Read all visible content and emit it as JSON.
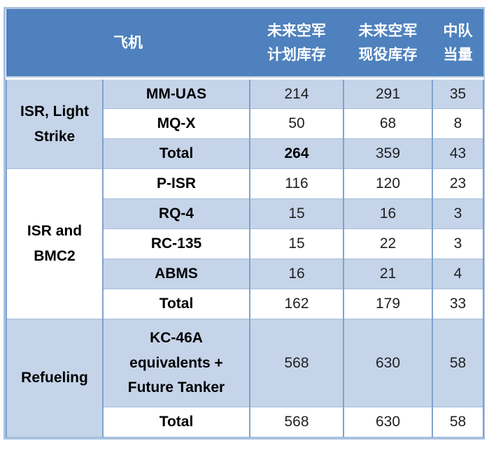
{
  "table": {
    "header": {
      "aircraft": "飞机",
      "planned": "未来空军\n计划库存",
      "active": "未来空军\n现役库存",
      "squadrons": "中队\n当量"
    },
    "rows": [
      {
        "group": "ISR, Light\nStrike",
        "aircraft": "MM-UAS",
        "planned": "214",
        "active": "291",
        "squadrons": "35"
      },
      {
        "aircraft": "MQ-X",
        "planned": "50",
        "active": "68",
        "squadrons": "8"
      },
      {
        "aircraft": "Total",
        "planned": "264",
        "active": "359",
        "squadrons": "43"
      },
      {
        "group": "ISR and\nBMC2",
        "aircraft": "P-ISR",
        "planned": "116",
        "active": "120",
        "squadrons": "23"
      },
      {
        "aircraft": "RQ-4",
        "planned": "15",
        "active": "16",
        "squadrons": "3"
      },
      {
        "aircraft": "RC-135",
        "planned": "15",
        "active": "22",
        "squadrons": "3"
      },
      {
        "aircraft": "ABMS",
        "planned": "16",
        "active": "21",
        "squadrons": "4"
      },
      {
        "aircraft": "Total",
        "planned": "162",
        "active": "179",
        "squadrons": "33"
      },
      {
        "group": "Refueling",
        "aircraft": "KC-46A\nequivalents +\nFuture Tanker",
        "planned": "568",
        "active": "630",
        "squadrons": "58"
      },
      {
        "aircraft": "Total",
        "planned": "568",
        "active": "630",
        "squadrons": "58"
      }
    ],
    "colors": {
      "header_bg": "#4E81BD",
      "header_text": "#FFFFFF",
      "band_bg": "#C5D4E9",
      "row_bg": "#FFFFFF",
      "vertical_border": "#7FA3CE",
      "horizontal_border": "#A6BEDD",
      "outer_border": "#A9C2DF",
      "label_text": "#000000",
      "number_text": "#1F1F1F"
    }
  }
}
